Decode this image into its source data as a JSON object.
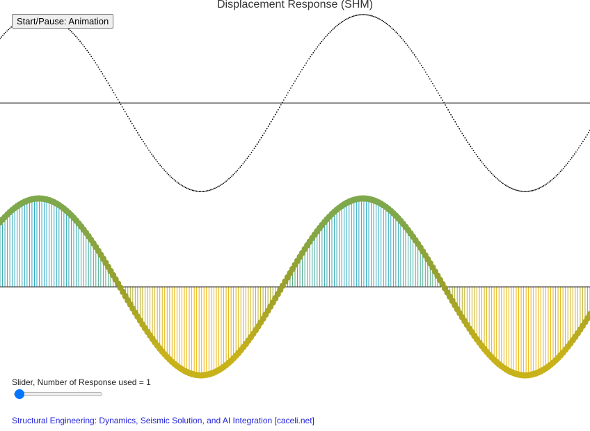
{
  "title": "Displacement Response (SHM)",
  "animation_button": {
    "label": "Start/Pause: Animation"
  },
  "slider": {
    "label": "Slider, Number of Response used = 1",
    "min": 1,
    "max": 10,
    "value": 1
  },
  "footer_link": {
    "text": "Structural Engineering: Dynamics, Seismic Solution, and AI Integration [caceli.net]"
  },
  "chart_data": [
    {
      "type": "line",
      "style": "dotted",
      "x_range_periods": [
        0,
        1.82
      ],
      "amplitude": 1,
      "phase_peak_fraction_at_left": 0.12,
      "grid": false,
      "color": "#000000"
    },
    {
      "type": "bar",
      "style": "stem-with-markers",
      "x_range_periods": [
        0,
        1.82
      ],
      "amplitude": 1,
      "phase_peak_fraction_at_left": 0.12,
      "grid": false,
      "colors": {
        "positive_stem": "#29a9c4",
        "negative_stem": "#f2b400",
        "marker_positive": "#7fa84c",
        "marker_negative": "#c8b21a"
      }
    }
  ]
}
